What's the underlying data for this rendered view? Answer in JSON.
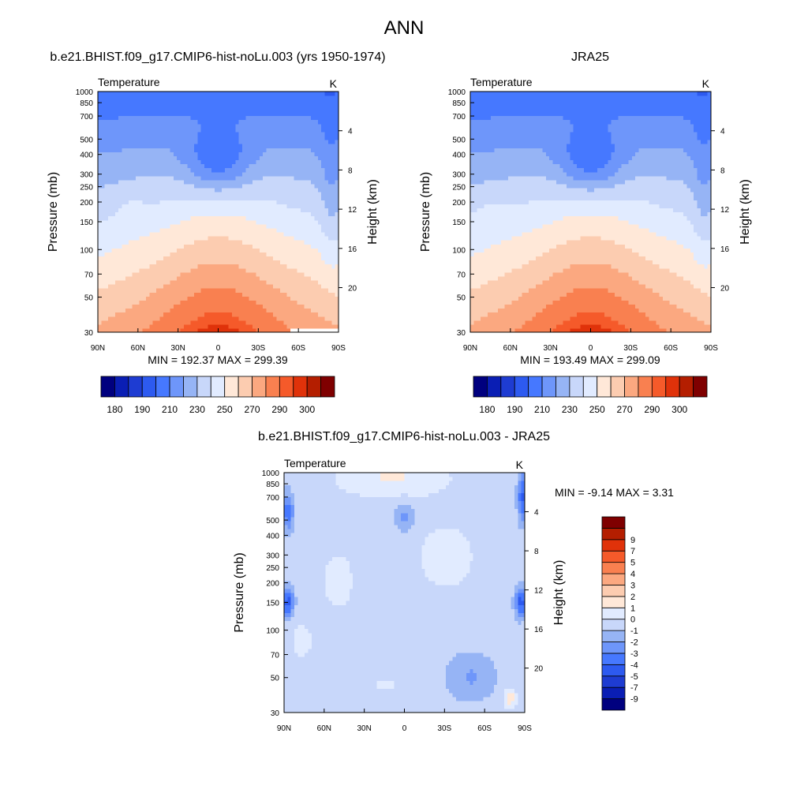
{
  "page_title": "ANN",
  "chart_data": [
    {
      "type": "heatmap",
      "title": "b.e21.BHIST.f09_g17.CMIP6-hist-noLu.003 (yrs 1950-1974)",
      "variable": "Temperature",
      "units": "K",
      "ylabel": "Pressure (mb)",
      "y2label": "Height (km)",
      "x_ticks": [
        "90N",
        "60N",
        "30N",
        "0",
        "30S",
        "60S",
        "90S"
      ],
      "y_ticks": [
        "30",
        "50",
        "70",
        "100",
        "150",
        "200",
        "250",
        "300",
        "400",
        "500",
        "700",
        "850",
        "1000"
      ],
      "y2_ticks": [
        "20",
        "16",
        "12",
        "8",
        "4"
      ],
      "ylim": [
        1000,
        30
      ],
      "y_scale": "log",
      "min": 192.37,
      "max": 299.39,
      "stats_text": "MIN = 192.37  MAX = 299.39",
      "colorbar": {
        "orientation": "horizontal",
        "levels": [
          180,
          185,
          190,
          200,
          210,
          220,
          230,
          240,
          250,
          260,
          270,
          280,
          290,
          295,
          300
        ],
        "labels": [
          "180",
          "190",
          "210",
          "230",
          "250",
          "270",
          "290",
          "300"
        ]
      }
    },
    {
      "type": "heatmap",
      "title": "JRA25",
      "variable": "Temperature",
      "units": "K",
      "ylabel": "Pressure (mb)",
      "y2label": "Height (km)",
      "x_ticks": [
        "90N",
        "60N",
        "30N",
        "0",
        "30S",
        "60S",
        "90S"
      ],
      "y_ticks": [
        "30",
        "50",
        "70",
        "100",
        "150",
        "200",
        "250",
        "300",
        "400",
        "500",
        "700",
        "850",
        "1000"
      ],
      "y2_ticks": [
        "20",
        "16",
        "12",
        "8",
        "4"
      ],
      "ylim": [
        1000,
        30
      ],
      "y_scale": "log",
      "min": 193.49,
      "max": 299.09,
      "stats_text": "MIN = 193.49  MAX = 299.09",
      "colorbar": {
        "orientation": "horizontal",
        "levels": [
          180,
          185,
          190,
          200,
          210,
          220,
          230,
          240,
          250,
          260,
          270,
          280,
          290,
          295,
          300
        ],
        "labels": [
          "180",
          "190",
          "210",
          "230",
          "250",
          "270",
          "290",
          "300"
        ]
      }
    },
    {
      "type": "heatmap",
      "title": "b.e21.BHIST.f09_g17.CMIP6-hist-noLu.003 - JRA25",
      "variable": "Temperature",
      "units": "K",
      "ylabel": "Pressure (mb)",
      "y2label": "Height (km)",
      "x_ticks": [
        "90N",
        "60N",
        "30N",
        "0",
        "30S",
        "60S",
        "90S"
      ],
      "y_ticks": [
        "30",
        "50",
        "70",
        "100",
        "150",
        "200",
        "250",
        "300",
        "400",
        "500",
        "700",
        "850",
        "1000"
      ],
      "y2_ticks": [
        "20",
        "16",
        "12",
        "8",
        "4"
      ],
      "ylim": [
        1000,
        30
      ],
      "y_scale": "log",
      "min": -9.14,
      "max": 3.31,
      "stats_text": "MIN =  -9.14  MAX =   3.31",
      "colorbar": {
        "orientation": "vertical",
        "levels": [
          -9,
          -7,
          -5,
          -4,
          -3,
          -2,
          -1,
          0,
          1,
          2,
          3,
          4,
          5,
          7,
          9
        ],
        "labels": [
          "-9",
          "-7",
          "-5",
          "-4",
          "-3",
          "-2",
          "-1",
          "0",
          "1",
          "2",
          "3",
          "4",
          "5",
          "7",
          "9"
        ]
      }
    }
  ],
  "palettes": {
    "absolute": [
      "#00007f",
      "#0a1eb4",
      "#1e3cd2",
      "#2d5af0",
      "#4678ff",
      "#6e96fa",
      "#96b4f5",
      "#c8d7fa",
      "#e1ebff",
      "#ffe8d8",
      "#fcccb0",
      "#fba880",
      "#f98050",
      "#f55a2a",
      "#e0320a",
      "#b41e00",
      "#7f0000"
    ],
    "difference": [
      "#00007f",
      "#0a1eb4",
      "#1e3cd2",
      "#2d5af0",
      "#4678ff",
      "#6e96fa",
      "#96b4f5",
      "#c8d7fa",
      "#e1ebff",
      "#ffe8d8",
      "#fcccb0",
      "#fba880",
      "#f98050",
      "#f55a2a",
      "#e0320a",
      "#b41e00",
      "#7f0000"
    ]
  }
}
